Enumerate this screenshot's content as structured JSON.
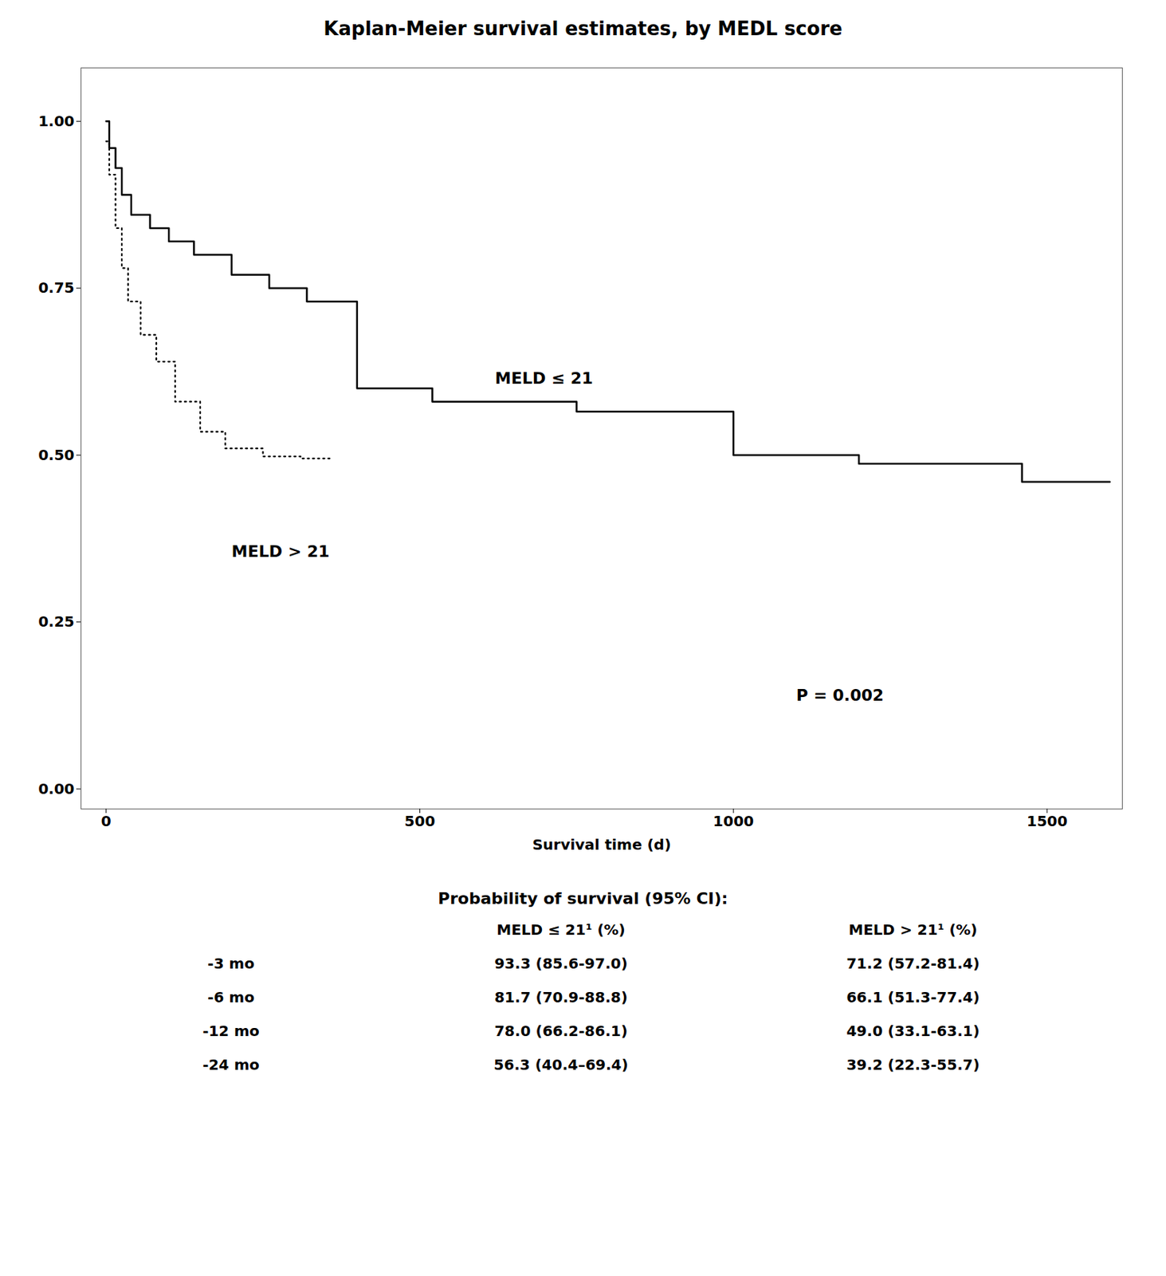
{
  "chart_data": {
    "type": "line",
    "title": "Kaplan-Meier survival estimates, by MEDL score",
    "xlabel": "Survival time (d)",
    "xlim": [
      -40,
      1620
    ],
    "ylim": [
      -0.03,
      1.08
    ],
    "xticks": [
      0,
      500,
      1000,
      1500
    ],
    "yticks": [
      {
        "value": 0.0,
        "label": "0.00"
      },
      {
        "value": 0.25,
        "label": "0.25"
      },
      {
        "value": 0.5,
        "label": "0.50"
      },
      {
        "value": 0.75,
        "label": "0.75"
      },
      {
        "value": 1.0,
        "label": "1.00"
      }
    ],
    "series": [
      {
        "color": "#000000",
        "line_style": "solid",
        "x": [
          0,
          5,
          5,
          15,
          15,
          25,
          25,
          40,
          40,
          70,
          70,
          100,
          100,
          140,
          140,
          200,
          200,
          260,
          260,
          320,
          320,
          400,
          400,
          520,
          520,
          750,
          750,
          1000,
          1000,
          1200,
          1200,
          1460,
          1460,
          1600
        ],
        "values": [
          1.0,
          1.0,
          0.96,
          0.96,
          0.93,
          0.93,
          0.89,
          0.89,
          0.86,
          0.86,
          0.84,
          0.84,
          0.82,
          0.82,
          0.8,
          0.8,
          0.77,
          0.77,
          0.75,
          0.75,
          0.73,
          0.73,
          0.6,
          0.6,
          0.58,
          0.58,
          0.565,
          0.565,
          0.5,
          0.5,
          0.487,
          0.487,
          0.46,
          0.46
        ]
      },
      {
        "color": "#000000",
        "line_style": "dotted",
        "x": [
          0,
          5,
          5,
          15,
          15,
          25,
          25,
          35,
          35,
          55,
          55,
          80,
          80,
          110,
          110,
          150,
          150,
          190,
          190,
          250,
          250,
          310,
          310,
          360,
          360
        ],
        "values": [
          0.97,
          0.97,
          0.92,
          0.92,
          0.84,
          0.84,
          0.78,
          0.78,
          0.73,
          0.73,
          0.68,
          0.68,
          0.64,
          0.64,
          0.58,
          0.58,
          0.535,
          0.535,
          0.51,
          0.51,
          0.498,
          0.498,
          0.495,
          0.495,
          0.495
        ]
      }
    ],
    "annotations": [
      {
        "text": "MELD ≤ 21",
        "x": 620,
        "y": 0.615
      },
      {
        "text": "MELD > 21",
        "x": 200,
        "y": 0.355
      },
      {
        "text": "P = 0.002",
        "x": 1100,
        "y": 0.14
      }
    ],
    "table": {
      "title": "Probability of survival (95% CI):",
      "headers": [
        "MELD ≤ 21¹ (%)",
        "MELD > 21¹ (%)"
      ],
      "rows": [
        [
          "-3 mo",
          "93.3 (85.6-97.0)",
          "71.2 (57.2-81.4)"
        ],
        [
          "-6 mo",
          "81.7 (70.9-88.8)",
          "66.1 (51.3-77.4)"
        ],
        [
          "-12 mo",
          "78.0 (66.2-86.1)",
          "49.0 (33.1-63.1)"
        ],
        [
          "-24 mo",
          "56.3 (40.4–69.4)",
          "39.2 (22.3-55.7)"
        ]
      ]
    }
  }
}
